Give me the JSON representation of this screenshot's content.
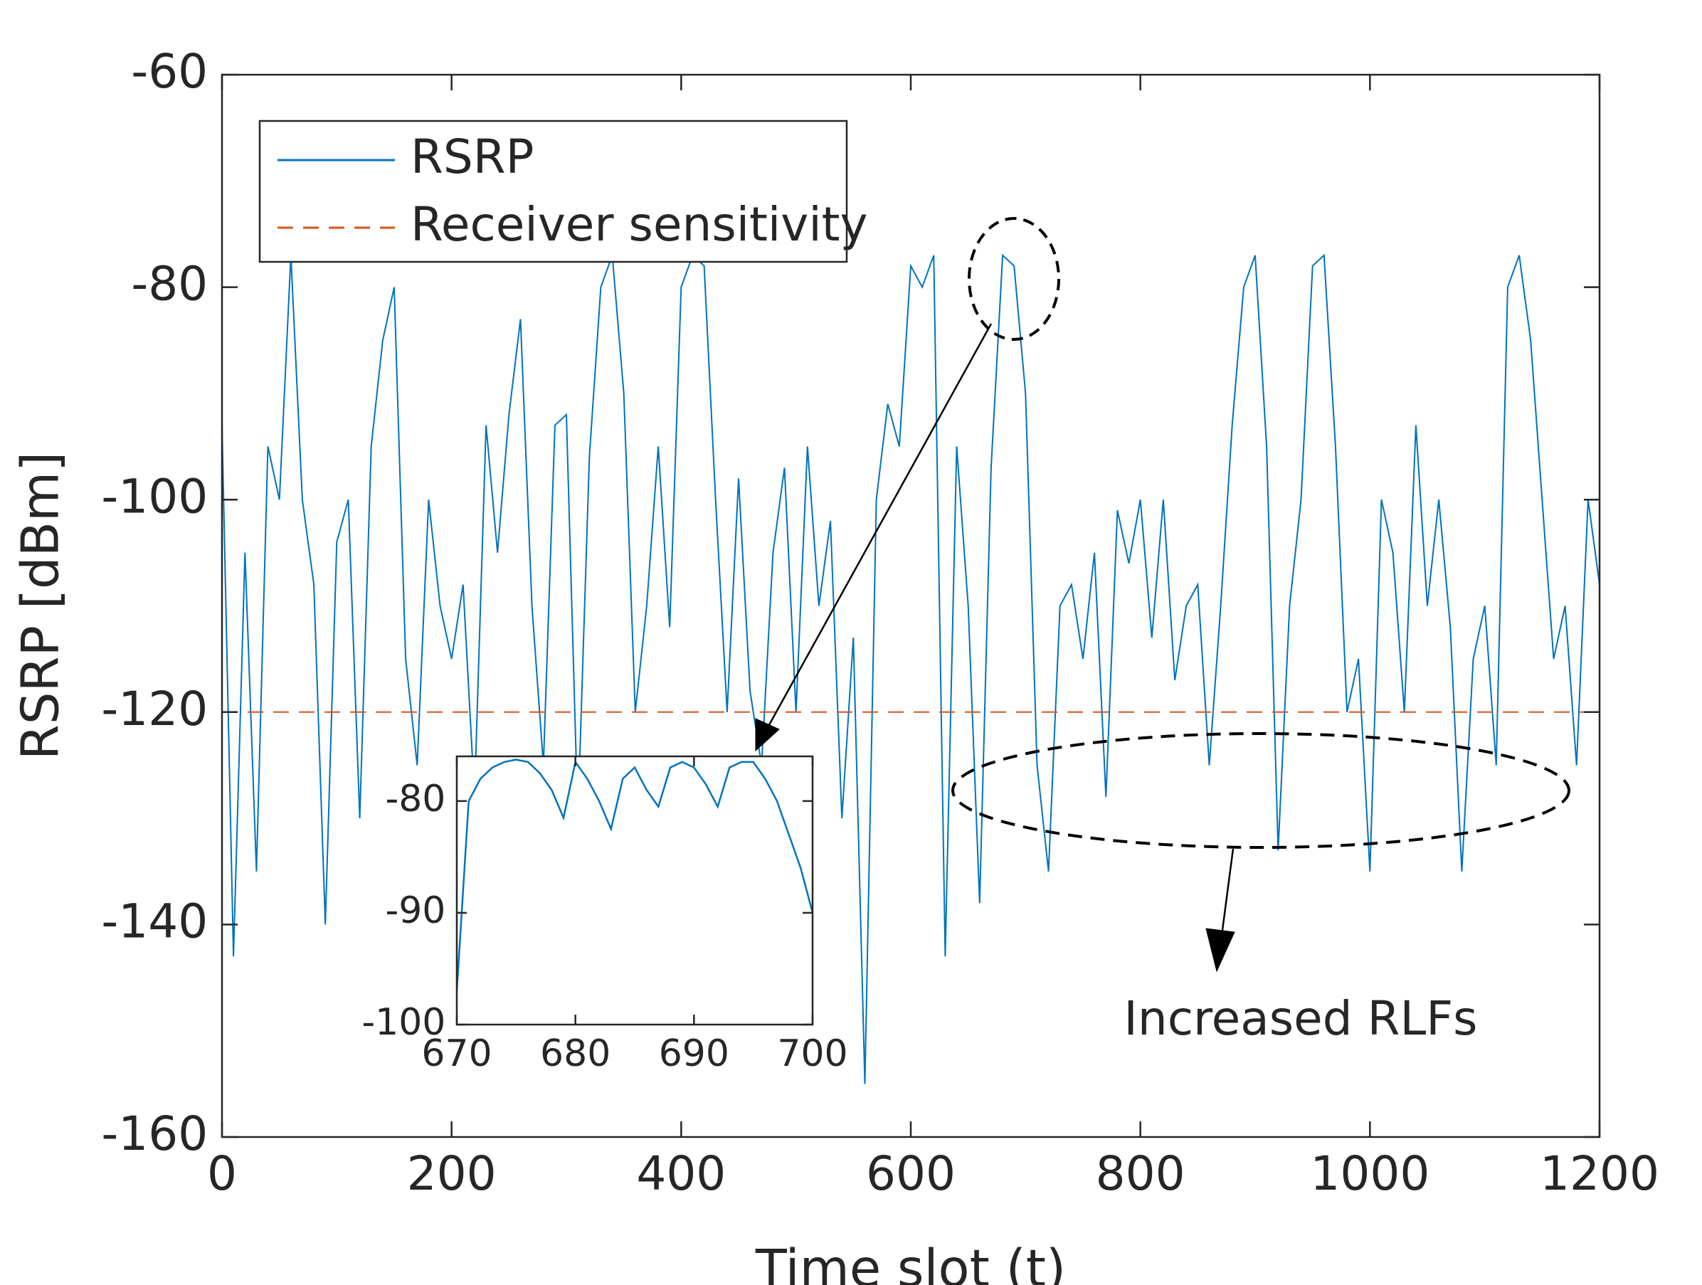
{
  "chart_data": [
    {
      "type": "line",
      "xlabel": "Time slot (t)",
      "ylabel": "RSRP [dBm]",
      "xlim": [
        0,
        1200
      ],
      "xticks": [
        0,
        200,
        400,
        600,
        800,
        1000,
        1200
      ],
      "ylim": [
        -160,
        -60
      ],
      "yticks": [
        -160,
        -140,
        -120,
        -100,
        -80,
        -60
      ],
      "legend": "upper left",
      "annotations": [
        "Increased RLFs"
      ],
      "series": [
        {
          "name": "RSRP",
          "color": "#0072bd",
          "style": "solid",
          "x": [
            0,
            10,
            20,
            30,
            40,
            50,
            60,
            70,
            80,
            90,
            100,
            110,
            120,
            130,
            140,
            150,
            160,
            170,
            180,
            190,
            200,
            210,
            220,
            230,
            240,
            250,
            260,
            270,
            280,
            290,
            300,
            310,
            320,
            330,
            340,
            350,
            360,
            370,
            380,
            390,
            400,
            410,
            420,
            430,
            440,
            450,
            460,
            470,
            480,
            490,
            500,
            510,
            520,
            530,
            540,
            550,
            560,
            570,
            580,
            590,
            600,
            610,
            620,
            630,
            640,
            650,
            660,
            670,
            680,
            690,
            700,
            710,
            720,
            730,
            740,
            750,
            760,
            770,
            780,
            790,
            800,
            810,
            820,
            830,
            840,
            850,
            860,
            870,
            880,
            890,
            900,
            910,
            920,
            930,
            940,
            950,
            960,
            970,
            980,
            990,
            1000,
            1010,
            1020,
            1030,
            1040,
            1050,
            1060,
            1070,
            1080,
            1090,
            1100,
            1110,
            1120,
            1130,
            1140,
            1150,
            1160,
            1170,
            1180,
            1190,
            1200
          ],
          "values": [
            -93,
            -143,
            -105,
            -135,
            -95,
            -100,
            -77,
            -100,
            -108,
            -140,
            -104,
            -100,
            -130,
            -95,
            -85,
            -80,
            -115,
            -125,
            -100,
            -110,
            -115,
            -108,
            -128,
            -93,
            -105,
            -92,
            -83,
            -110,
            -125,
            -93,
            -92,
            -130,
            -96,
            -80,
            -77,
            -90,
            -120,
            -110,
            -95,
            -112,
            -80,
            -77,
            -78,
            -100,
            -120,
            -98,
            -118,
            -125,
            -105,
            -97,
            -120,
            -95,
            -110,
            -102,
            -130,
            -113,
            -155,
            -100,
            -91,
            -95,
            -78,
            -80,
            -77,
            -143,
            -95,
            -110,
            -138,
            -97,
            -77,
            -78,
            -90,
            -125,
            -135,
            -110,
            -108,
            -115,
            -105,
            -128,
            -101,
            -106,
            -100,
            -113,
            -100,
            -117,
            -110,
            -108,
            -125,
            -110,
            -93,
            -80,
            -77,
            -95,
            -133,
            -110,
            -100,
            -78,
            -77,
            -95,
            -120,
            -115,
            -135,
            -100,
            -105,
            -120,
            -93,
            -110,
            -100,
            -112,
            -135,
            -115,
            -110,
            -125,
            -80,
            -77,
            -85,
            -100,
            -115,
            -110,
            -125,
            -100,
            -108
          ]
        },
        {
          "name": "Receiver sensitivity",
          "color": "#d95319",
          "style": "dashed",
          "x": [
            0,
            1200
          ],
          "values": [
            -120,
            -120
          ]
        }
      ]
    },
    {
      "type": "line",
      "xlim": [
        670,
        700
      ],
      "xticks": [
        670,
        680,
        690,
        700
      ],
      "ylim": [
        -100,
        -76
      ],
      "yticks": [
        -100,
        -90,
        -80
      ],
      "series": [
        {
          "color": "#0072bd",
          "style": "solid",
          "x": [
            670,
            671,
            672,
            673,
            674,
            675,
            676,
            677,
            678,
            679,
            680,
            681,
            682,
            683,
            684,
            685,
            686,
            687,
            688,
            689,
            690,
            691,
            692,
            693,
            694,
            695,
            696,
            697,
            698,
            699,
            700
          ],
          "values": [
            -97,
            -80,
            -78,
            -77,
            -76.5,
            -76.3,
            -76.5,
            -77.5,
            -79,
            -81.5,
            -76.5,
            -78,
            -80,
            -82.5,
            -78,
            -77,
            -79,
            -80.5,
            -77,
            -76.5,
            -77,
            -78.5,
            -80.5,
            -77,
            -76.5,
            -76.5,
            -78,
            -80,
            -83,
            -86,
            -90
          ]
        }
      ]
    }
  ]
}
